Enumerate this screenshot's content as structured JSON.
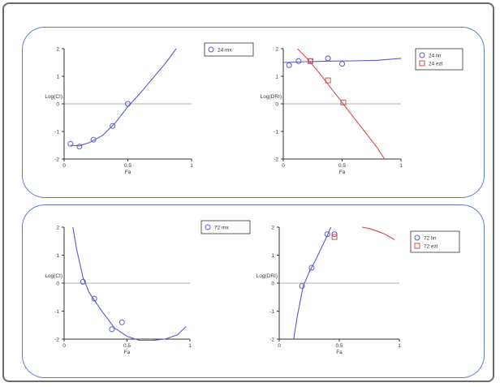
{
  "chart_data": [
    {
      "type": "scatter",
      "xlabel": "Fa",
      "ylabel": "Log(CI)",
      "xlim": [
        0,
        1
      ],
      "ylim": [
        -2,
        2
      ],
      "xticks": [
        "0",
        "0.5",
        "1"
      ],
      "yticks": [
        "2",
        "1",
        "0",
        "-1",
        "-2"
      ],
      "legend": [
        {
          "label": "24 mx",
          "marker": "circle",
          "color": "#5a5ad0"
        }
      ],
      "series": [
        {
          "name": "24 mx",
          "marker": "circle",
          "color": "#5a5ad0",
          "points": [
            [
              0.05,
              -1.45
            ],
            [
              0.12,
              -1.55
            ],
            [
              0.23,
              -1.3
            ],
            [
              0.38,
              -0.8
            ],
            [
              0.5,
              0.0
            ]
          ],
          "fit": [
            [
              0.05,
              -1.5
            ],
            [
              0.12,
              -1.52
            ],
            [
              0.2,
              -1.4
            ],
            [
              0.3,
              -1.15
            ],
            [
              0.4,
              -0.7
            ],
            [
              0.5,
              -0.1
            ],
            [
              0.6,
              0.4
            ],
            [
              0.7,
              0.95
            ],
            [
              0.8,
              1.5
            ],
            [
              0.88,
              2.0
            ]
          ]
        }
      ]
    },
    {
      "type": "scatter",
      "xlabel": "Fa",
      "ylabel": "Log(DRI)",
      "xlim": [
        0,
        1
      ],
      "ylim": [
        -2,
        2
      ],
      "xticks": [
        "0",
        "0.5",
        "1"
      ],
      "yticks": [
        "2",
        "1",
        "0",
        "-1",
        "-2"
      ],
      "legend": [
        {
          "label": "24 lin",
          "marker": "circle",
          "color": "#5a5ad0"
        },
        {
          "label": "24 ezl",
          "marker": "square",
          "color": "#d94c4c"
        }
      ],
      "series": [
        {
          "name": "24 lin",
          "marker": "circle",
          "color": "#5a5ad0",
          "points": [
            [
              0.05,
              1.4
            ],
            [
              0.13,
              1.55
            ],
            [
              0.23,
              1.55
            ],
            [
              0.38,
              1.65
            ],
            [
              0.5,
              1.45
            ]
          ],
          "fit": [
            [
              0.0,
              1.5
            ],
            [
              0.2,
              1.53
            ],
            [
              0.4,
              1.55
            ],
            [
              0.6,
              1.56
            ],
            [
              0.8,
              1.58
            ],
            [
              1.0,
              1.65
            ]
          ]
        },
        {
          "name": "24 ezl",
          "marker": "square",
          "color": "#d94c4c",
          "points": [
            [
              0.23,
              1.55
            ],
            [
              0.38,
              0.85
            ],
            [
              0.51,
              0.05
            ]
          ],
          "fit": [
            [
              0.12,
              2.0
            ],
            [
              0.2,
              1.65
            ],
            [
              0.3,
              1.15
            ],
            [
              0.4,
              0.6
            ],
            [
              0.5,
              0.05
            ],
            [
              0.6,
              -0.5
            ],
            [
              0.7,
              -1.05
            ],
            [
              0.8,
              -1.6
            ],
            [
              0.86,
              -2.0
            ]
          ]
        }
      ]
    },
    {
      "type": "scatter",
      "xlabel": "Fa",
      "ylabel": "Log(CI)",
      "xlim": [
        0,
        1
      ],
      "ylim": [
        -2,
        2
      ],
      "xticks": [
        "0",
        "0.5",
        "1"
      ],
      "yticks": [
        "2",
        "1",
        "0",
        "-1",
        "-2"
      ],
      "legend": [
        {
          "label": "72 mx",
          "marker": "circle",
          "color": "#5a5ad0"
        }
      ],
      "series": [
        {
          "name": "72 mx",
          "marker": "circle",
          "color": "#5a5ad0",
          "points": [
            [
              0.15,
              0.05
            ],
            [
              0.24,
              -0.55
            ],
            [
              0.38,
              -1.65
            ],
            [
              0.46,
              -1.4
            ]
          ],
          "fit": [
            [
              0.07,
              2.0
            ],
            [
              0.1,
              1.2
            ],
            [
              0.15,
              0.2
            ],
            [
              0.2,
              -0.35
            ],
            [
              0.3,
              -1.0
            ],
            [
              0.4,
              -1.6
            ],
            [
              0.5,
              -1.9
            ],
            [
              0.6,
              -2.05
            ],
            [
              0.7,
              -2.05
            ],
            [
              0.8,
              -2.0
            ],
            [
              0.9,
              -1.85
            ],
            [
              0.97,
              -1.55
            ]
          ]
        }
      ]
    },
    {
      "type": "scatter",
      "xlabel": "Fa",
      "ylabel": "Log(DRI)",
      "xlim": [
        0,
        1
      ],
      "ylim": [
        -2,
        2
      ],
      "xticks": [
        "0",
        "0.5",
        "1"
      ],
      "yticks": [
        "2",
        "1",
        "0",
        "-1",
        "-2"
      ],
      "legend": [
        {
          "label": "72 lin",
          "marker": "circle",
          "color": "#5a5ad0"
        },
        {
          "label": "72 ezl",
          "marker": "square",
          "color": "#d94c4c"
        }
      ],
      "series": [
        {
          "name": "72 lin",
          "marker": "circle",
          "color": "#5a5ad0",
          "points": [
            [
              0.19,
              -0.1
            ],
            [
              0.27,
              0.55
            ],
            [
              0.4,
              1.75
            ],
            [
              0.46,
              1.75
            ]
          ],
          "fit": [
            [
              0.12,
              -2.0
            ],
            [
              0.15,
              -1.2
            ],
            [
              0.2,
              -0.1
            ],
            [
              0.25,
              0.4
            ],
            [
              0.3,
              0.8
            ],
            [
              0.35,
              1.25
            ],
            [
              0.4,
              1.7
            ],
            [
              0.43,
              2.0
            ]
          ]
        },
        {
          "name": "72 ezl",
          "marker": "square",
          "color": "#d94c4c",
          "points": [
            [
              0.46,
              1.65
            ]
          ],
          "fit": [
            [
              0.69,
              2.0
            ],
            [
              0.75,
              1.95
            ],
            [
              0.82,
              1.85
            ],
            [
              0.88,
              1.75
            ],
            [
              0.92,
              1.65
            ],
            [
              0.96,
              1.55
            ]
          ]
        }
      ]
    }
  ]
}
